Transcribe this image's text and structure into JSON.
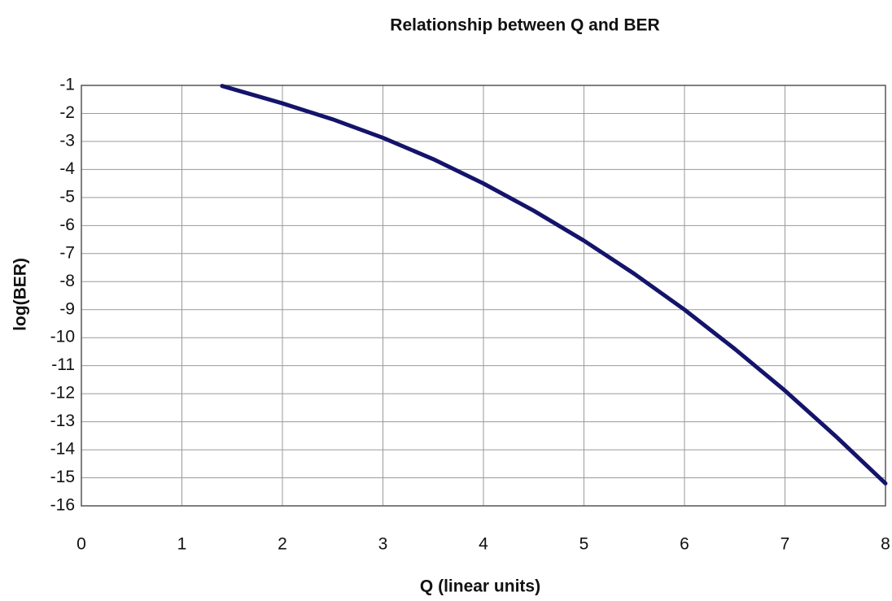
{
  "chart_data": {
    "type": "line",
    "title": "Relationship between Q and BER",
    "xlabel": "Q (linear units)",
    "ylabel": "log(BER)",
    "x": [
      1.4,
      2,
      2.5,
      3,
      3.5,
      4,
      4.5,
      5,
      5.5,
      6,
      6.5,
      7,
      7.5,
      8
    ],
    "series": [
      {
        "name": "log(BER)",
        "color": "#14146b",
        "values": [
          -1.02,
          -1.64,
          -2.21,
          -2.87,
          -3.63,
          -4.5,
          -5.47,
          -6.54,
          -7.72,
          -9.0,
          -10.4,
          -11.89,
          -13.5,
          -15.2
        ]
      }
    ],
    "xlim": [
      0,
      8
    ],
    "xticks": [
      0,
      1,
      2,
      3,
      4,
      5,
      6,
      7,
      8
    ],
    "ylim": [
      -16,
      -1
    ],
    "yticks": [
      -1,
      -2,
      -3,
      -4,
      -5,
      -6,
      -7,
      -8,
      -9,
      -10,
      -11,
      -12,
      -13,
      -14,
      -15,
      -16
    ],
    "grid": true
  }
}
